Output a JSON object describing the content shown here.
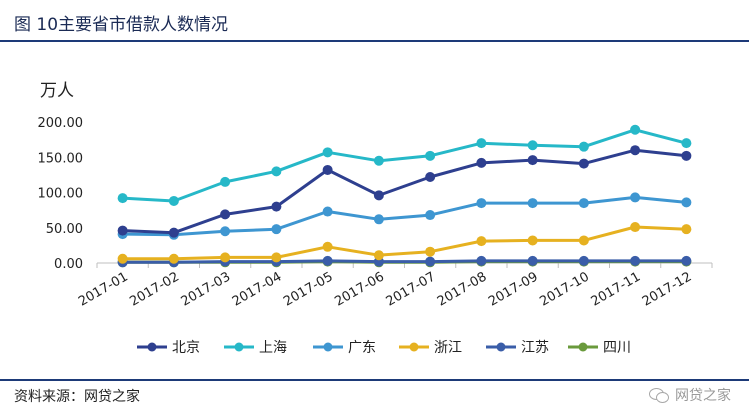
{
  "header": {
    "title": "图 10主要省市借款人数情况"
  },
  "footer": {
    "source": "资料来源：网贷之家",
    "watermark": "网贷之家"
  },
  "chart_data": {
    "type": "line",
    "unit_label": "万人",
    "ylim": [
      0,
      200
    ],
    "yticks": [
      "0.00",
      "50.00",
      "100.00",
      "150.00",
      "200.00"
    ],
    "ytick_values": [
      0,
      50,
      100,
      150,
      200
    ],
    "categories": [
      "2017-01",
      "2017-02",
      "2017-03",
      "2017-04",
      "2017-05",
      "2017-06",
      "2017-07",
      "2017-08",
      "2017-09",
      "2017-10",
      "2017-11",
      "2017-12"
    ],
    "legend_position": "bottom",
    "series": [
      {
        "name": "北京",
        "color": "#2e3f8f",
        "values": [
          46,
          43,
          69,
          80,
          132,
          96,
          122,
          142,
          146,
          141,
          160,
          152
        ]
      },
      {
        "name": "上海",
        "color": "#26b8c8",
        "values": [
          92,
          88,
          115,
          130,
          157,
          145,
          152,
          170,
          167,
          165,
          189,
          170
        ]
      },
      {
        "name": "广东",
        "color": "#3e96d1",
        "values": [
          41,
          40,
          45,
          48,
          73,
          62,
          68,
          85,
          85,
          85,
          93,
          86
        ]
      },
      {
        "name": "浙江",
        "color": "#e6b120",
        "values": [
          6,
          6,
          8,
          8,
          23,
          11,
          16,
          31,
          32,
          32,
          51,
          48
        ]
      },
      {
        "name": "江苏",
        "color": "#3a5da8",
        "values": [
          1,
          1,
          2,
          2,
          3,
          2,
          2,
          3,
          3,
          3,
          3,
          3
        ]
      },
      {
        "name": "四川",
        "color": "#6a9a3c",
        "values": [
          1,
          1,
          1,
          1,
          2,
          1,
          1,
          2,
          2,
          2,
          2,
          2
        ]
      }
    ]
  }
}
